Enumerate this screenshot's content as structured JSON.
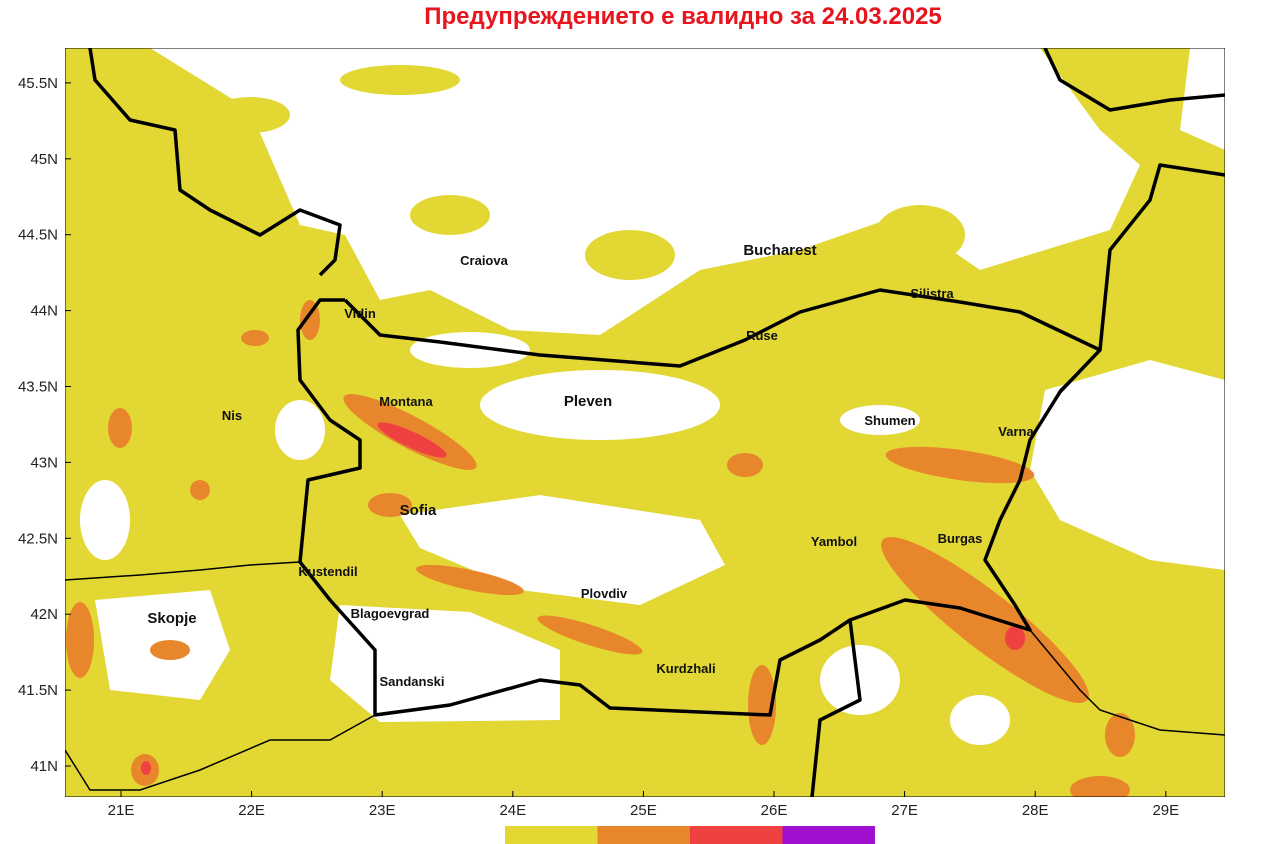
{
  "title": "Предупреждението е валидно за 24.03.2025",
  "lon_ticks": [
    {
      "value": 21,
      "label": "21E"
    },
    {
      "value": 22,
      "label": "22E"
    },
    {
      "value": 23,
      "label": "23E"
    },
    {
      "value": 24,
      "label": "24E"
    },
    {
      "value": 25,
      "label": "25E"
    },
    {
      "value": 26,
      "label": "26E"
    },
    {
      "value": 27,
      "label": "27E"
    },
    {
      "value": 28,
      "label": "28E"
    },
    {
      "value": 29,
      "label": "29E"
    }
  ],
  "lat_ticks": [
    {
      "value": 45.5,
      "label": "45.5N"
    },
    {
      "value": 45,
      "label": "45N"
    },
    {
      "value": 44.5,
      "label": "44.5N"
    },
    {
      "value": 44,
      "label": "44N"
    },
    {
      "value": 43.5,
      "label": "43.5N"
    },
    {
      "value": 43,
      "label": "43N"
    },
    {
      "value": 42.5,
      "label": "42.5N"
    },
    {
      "value": 42,
      "label": "42N"
    },
    {
      "value": 41.5,
      "label": "41.5N"
    },
    {
      "value": 41,
      "label": "41N"
    }
  ],
  "cities": [
    "Craiova",
    "Bucharest",
    "Silistra",
    "Vidin",
    "Ruse",
    "Montana",
    "Pleven",
    "Nis",
    "Shumen",
    "Varna",
    "Sofia",
    "Yambol",
    "Burgas",
    "Kustendil",
    "Plovdiv",
    "Blagoevgrad",
    "Skopje",
    "Kurdzhali",
    "Sandanski"
  ],
  "legend_colors": [
    "#e2d733",
    "#e8862c",
    "#f04141",
    "#a10ed0"
  ]
}
